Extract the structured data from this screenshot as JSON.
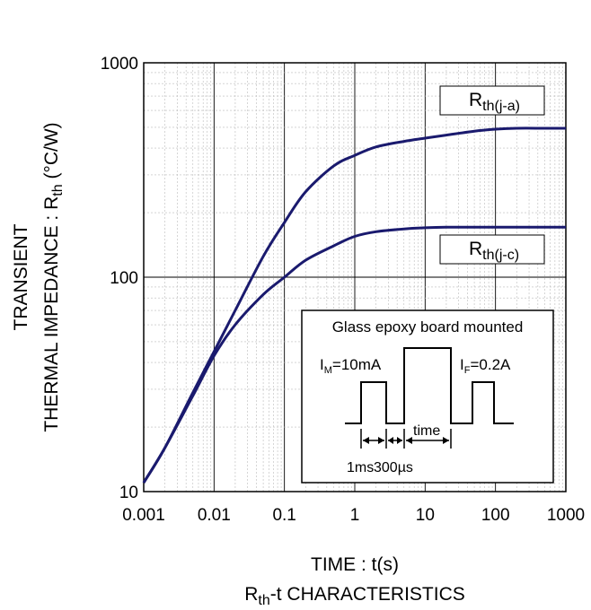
{
  "chart_data": {
    "type": "line",
    "x_scale": "log",
    "y_scale": "log",
    "xlim": [
      0.001,
      1000
    ],
    "ylim": [
      10,
      1000
    ],
    "x_ticks": [
      "0.001",
      "0.01",
      "0.1",
      "1",
      "10",
      "100",
      "1000"
    ],
    "y_ticks": [
      "10",
      "100",
      "1000"
    ],
    "grid": true,
    "ylabel_line1": "TRANSIENT",
    "ylabel_line2_main": "THERMAL IMPEDANCE : R",
    "ylabel_line2_sub": "th",
    "ylabel_line2_unit": " (°C/W)",
    "xlabel": "TIME : t(s)",
    "title_main": "R",
    "title_sub": "th",
    "title_rest": "-t CHARACTERISTICS",
    "line_color": "#1a1a6e",
    "series": [
      {
        "name_main": "R",
        "name_sub": "th(j-a)",
        "x": [
          0.001,
          0.002,
          0.005,
          0.01,
          0.02,
          0.05,
          0.1,
          0.2,
          0.5,
          1,
          2,
          5,
          10,
          20,
          50,
          100,
          200,
          500,
          1000
        ],
        "y": [
          11,
          16,
          29,
          45,
          70,
          125,
          180,
          250,
          330,
          370,
          405,
          430,
          445,
          460,
          480,
          490,
          495,
          495,
          495
        ]
      },
      {
        "name_main": "R",
        "name_sub": "th(j-c)",
        "x": [
          0.001,
          0.002,
          0.005,
          0.01,
          0.02,
          0.05,
          0.1,
          0.2,
          0.5,
          1,
          2,
          5,
          10,
          20,
          50,
          100,
          200,
          500,
          1000
        ],
        "y": [
          11,
          16,
          28,
          43,
          60,
          83,
          100,
          120,
          140,
          155,
          163,
          168,
          170,
          171,
          171,
          171,
          171,
          171,
          171
        ]
      }
    ]
  },
  "inset": {
    "title": "Glass epoxy board mounted",
    "im_main": "I",
    "im_sub": "M",
    "im_rest": "=10mA",
    "if_main": "I",
    "if_sub": "F",
    "if_rest": "=0.2A",
    "time_label": "time",
    "dur1": "1ms",
    "dur2": "300µs"
  }
}
